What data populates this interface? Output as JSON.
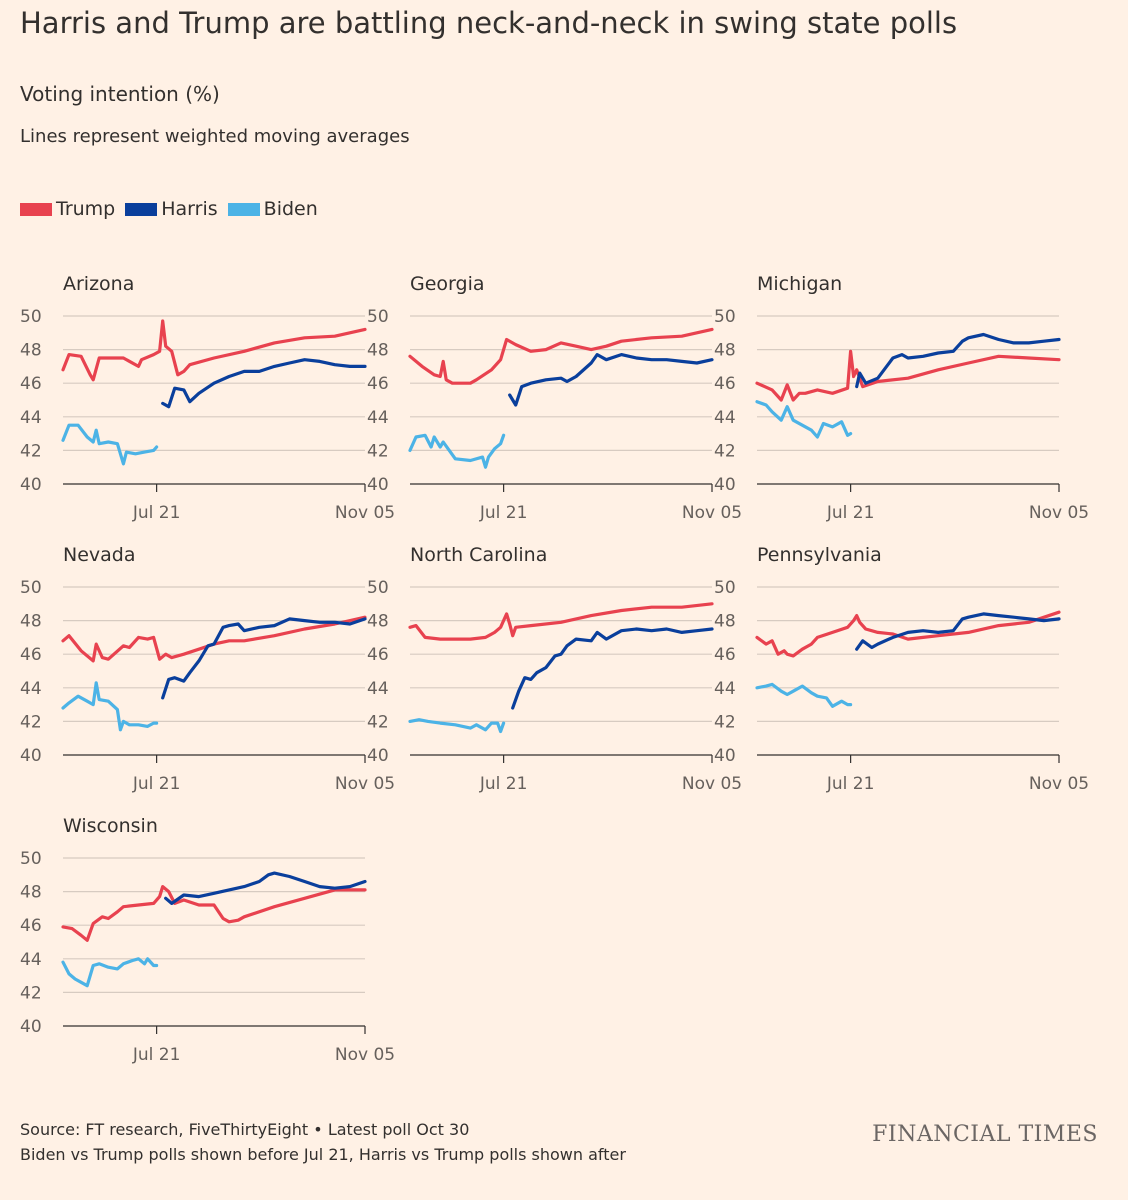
{
  "title": "Harris and Trump are battling neck-and-neck in swing state polls",
  "subtitle": "Voting intention (%)",
  "note": "Lines represent weighted moving averages",
  "legend": [
    {
      "name": "Trump",
      "color": "#e8424f"
    },
    {
      "name": "Harris",
      "color": "#0a3f9c"
    },
    {
      "name": "Biden",
      "color": "#4cb3e6"
    }
  ],
  "footer": {
    "source": "Source: FT research, FiveThirtyEight • Latest poll Oct 30",
    "note": "Biden vs Trump polls shown before Jul 21, Harris vs Trump polls shown after"
  },
  "brand": "FINANCIAL TIMES",
  "chart_data": [
    {
      "type": "line",
      "title": "Arizona",
      "x_ticks": [
        "Jul 21",
        "Nov 05"
      ],
      "ylim": [
        40,
        50
      ],
      "y_ticks": [
        40,
        42,
        44,
        46,
        48,
        50
      ],
      "series": [
        {
          "name": "Trump",
          "color": "#e8424f",
          "x": [
            0,
            0.02,
            0.06,
            0.09,
            0.1,
            0.12,
            0.13,
            0.2,
            0.25,
            0.26,
            0.3,
            0.32,
            0.33,
            0.34,
            0.36,
            0.38,
            0.4,
            0.42,
            0.5,
            0.6,
            0.7,
            0.8,
            0.9,
            1
          ],
          "y": [
            46.8,
            47.7,
            47.6,
            46.5,
            46.2,
            47.5,
            47.5,
            47.5,
            47.0,
            47.4,
            47.7,
            47.9,
            49.7,
            48.2,
            47.9,
            46.5,
            46.7,
            47.1,
            47.5,
            47.9,
            48.4,
            48.7,
            48.8,
            49.2
          ]
        },
        {
          "name": "Harris",
          "color": "#0a3f9c",
          "x": [
            0.33,
            0.35,
            0.37,
            0.4,
            0.42,
            0.45,
            0.5,
            0.55,
            0.6,
            0.65,
            0.7,
            0.75,
            0.8,
            0.85,
            0.9,
            0.95,
            1
          ],
          "y": [
            44.8,
            44.6,
            45.7,
            45.6,
            44.9,
            45.4,
            46.0,
            46.4,
            46.7,
            46.7,
            47.0,
            47.2,
            47.4,
            47.3,
            47.1,
            47.0,
            47.0
          ]
        },
        {
          "name": "Biden",
          "color": "#4cb3e6",
          "x": [
            0,
            0.02,
            0.05,
            0.08,
            0.1,
            0.11,
            0.12,
            0.15,
            0.18,
            0.2,
            0.21,
            0.24,
            0.27,
            0.3,
            0.31
          ],
          "y": [
            42.6,
            43.5,
            43.5,
            42.8,
            42.5,
            43.2,
            42.4,
            42.5,
            42.4,
            41.2,
            41.9,
            41.8,
            41.9,
            42.0,
            42.2
          ]
        }
      ]
    },
    {
      "type": "line",
      "title": "Georgia",
      "x_ticks": [
        "Jul 21",
        "Nov 05"
      ],
      "ylim": [
        40,
        50
      ],
      "y_ticks": [
        40,
        42,
        44,
        46,
        48,
        50
      ],
      "series": [
        {
          "name": "Trump",
          "color": "#e8424f",
          "x": [
            0,
            0.04,
            0.08,
            0.1,
            0.11,
            0.12,
            0.14,
            0.2,
            0.22,
            0.27,
            0.3,
            0.32,
            0.35,
            0.4,
            0.45,
            0.5,
            0.55,
            0.6,
            0.65,
            0.7,
            0.8,
            0.9,
            1
          ],
          "y": [
            47.6,
            47.0,
            46.5,
            46.4,
            47.3,
            46.2,
            46.0,
            46.0,
            46.2,
            46.8,
            47.4,
            48.6,
            48.3,
            47.9,
            48.0,
            48.4,
            48.2,
            48.0,
            48.2,
            48.5,
            48.7,
            48.8,
            49.2
          ]
        },
        {
          "name": "Harris",
          "color": "#0a3f9c",
          "x": [
            0.33,
            0.35,
            0.37,
            0.4,
            0.45,
            0.5,
            0.52,
            0.55,
            0.6,
            0.62,
            0.65,
            0.7,
            0.75,
            0.8,
            0.85,
            0.9,
            0.95,
            1
          ],
          "y": [
            45.3,
            44.7,
            45.8,
            46.0,
            46.2,
            46.3,
            46.1,
            46.4,
            47.2,
            47.7,
            47.4,
            47.7,
            47.5,
            47.4,
            47.4,
            47.3,
            47.2,
            47.4
          ]
        },
        {
          "name": "Biden",
          "color": "#4cb3e6",
          "x": [
            0,
            0.02,
            0.05,
            0.07,
            0.08,
            0.1,
            0.11,
            0.15,
            0.2,
            0.24,
            0.25,
            0.26,
            0.28,
            0.3,
            0.31
          ],
          "y": [
            42.0,
            42.8,
            42.9,
            42.2,
            42.8,
            42.2,
            42.5,
            41.5,
            41.4,
            41.6,
            41.0,
            41.6,
            42.1,
            42.4,
            42.9
          ]
        }
      ]
    },
    {
      "type": "line",
      "title": "Michigan",
      "x_ticks": [
        "Jul 21",
        "Nov 05"
      ],
      "ylim": [
        40,
        50
      ],
      "y_ticks": [
        40,
        42,
        44,
        46,
        48,
        50
      ],
      "series": [
        {
          "name": "Trump",
          "color": "#e8424f",
          "x": [
            0,
            0.05,
            0.08,
            0.1,
            0.12,
            0.14,
            0.16,
            0.2,
            0.25,
            0.3,
            0.31,
            0.32,
            0.33,
            0.35,
            0.4,
            0.5,
            0.6,
            0.7,
            0.8,
            0.9,
            1
          ],
          "y": [
            46.0,
            45.6,
            45.0,
            45.9,
            45.0,
            45.4,
            45.4,
            45.6,
            45.4,
            45.7,
            47.9,
            46.4,
            46.8,
            45.8,
            46.1,
            46.3,
            46.8,
            47.2,
            47.6,
            47.5,
            47.4
          ]
        },
        {
          "name": "Harris",
          "color": "#0a3f9c",
          "x": [
            0.33,
            0.34,
            0.36,
            0.4,
            0.45,
            0.48,
            0.5,
            0.55,
            0.6,
            0.65,
            0.68,
            0.7,
            0.75,
            0.8,
            0.85,
            0.9,
            0.95,
            1
          ],
          "y": [
            45.8,
            46.6,
            46.0,
            46.3,
            47.5,
            47.7,
            47.5,
            47.6,
            47.8,
            47.9,
            48.5,
            48.7,
            48.9,
            48.6,
            48.4,
            48.4,
            48.5,
            48.6
          ]
        },
        {
          "name": "Biden",
          "color": "#4cb3e6",
          "x": [
            0,
            0.03,
            0.05,
            0.08,
            0.1,
            0.12,
            0.15,
            0.18,
            0.2,
            0.22,
            0.25,
            0.28,
            0.3,
            0.31
          ],
          "y": [
            44.9,
            44.7,
            44.3,
            43.8,
            44.6,
            43.8,
            43.5,
            43.2,
            42.8,
            43.6,
            43.4,
            43.7,
            42.9,
            43.0
          ]
        }
      ]
    },
    {
      "type": "line",
      "title": "Nevada",
      "x_ticks": [
        "Jul 21",
        "Nov 05"
      ],
      "ylim": [
        40,
        50
      ],
      "y_ticks": [
        40,
        42,
        44,
        46,
        48,
        50
      ],
      "series": [
        {
          "name": "Trump",
          "color": "#e8424f",
          "x": [
            0,
            0.02,
            0.06,
            0.1,
            0.11,
            0.13,
            0.15,
            0.2,
            0.22,
            0.25,
            0.28,
            0.3,
            0.32,
            0.34,
            0.36,
            0.4,
            0.45,
            0.5,
            0.55,
            0.6,
            0.7,
            0.8,
            0.9,
            1
          ],
          "y": [
            46.8,
            47.1,
            46.2,
            45.6,
            46.6,
            45.8,
            45.7,
            46.5,
            46.4,
            47.0,
            46.9,
            47.0,
            45.7,
            46.0,
            45.8,
            46.0,
            46.3,
            46.6,
            46.8,
            46.8,
            47.1,
            47.5,
            47.8,
            48.2
          ]
        },
        {
          "name": "Harris",
          "color": "#0a3f9c",
          "x": [
            0.33,
            0.35,
            0.37,
            0.4,
            0.42,
            0.45,
            0.48,
            0.5,
            0.53,
            0.55,
            0.58,
            0.6,
            0.65,
            0.7,
            0.75,
            0.8,
            0.85,
            0.9,
            0.95,
            1
          ],
          "y": [
            43.4,
            44.5,
            44.6,
            44.4,
            44.9,
            45.6,
            46.5,
            46.6,
            47.6,
            47.7,
            47.8,
            47.4,
            47.6,
            47.7,
            48.1,
            48.0,
            47.9,
            47.9,
            47.8,
            48.1
          ]
        },
        {
          "name": "Biden",
          "color": "#4cb3e6",
          "x": [
            0,
            0.02,
            0.05,
            0.08,
            0.1,
            0.11,
            0.12,
            0.15,
            0.18,
            0.19,
            0.2,
            0.22,
            0.25,
            0.28,
            0.3,
            0.31
          ],
          "y": [
            42.8,
            43.1,
            43.5,
            43.2,
            43.0,
            44.3,
            43.3,
            43.2,
            42.7,
            41.5,
            42.0,
            41.8,
            41.8,
            41.7,
            41.9,
            41.9
          ]
        }
      ]
    },
    {
      "type": "line",
      "title": "North Carolina",
      "x_ticks": [
        "Jul 21",
        "Nov 05"
      ],
      "ylim": [
        40,
        50
      ],
      "y_ticks": [
        40,
        42,
        44,
        46,
        48,
        50
      ],
      "series": [
        {
          "name": "Trump",
          "color": "#e8424f",
          "x": [
            0,
            0.02,
            0.05,
            0.1,
            0.15,
            0.2,
            0.25,
            0.28,
            0.3,
            0.32,
            0.33,
            0.34,
            0.35,
            0.4,
            0.5,
            0.55,
            0.6,
            0.7,
            0.8,
            0.9,
            1
          ],
          "y": [
            47.6,
            47.7,
            47.0,
            46.9,
            46.9,
            46.9,
            47.0,
            47.3,
            47.6,
            48.4,
            47.8,
            47.1,
            47.6,
            47.7,
            47.9,
            48.1,
            48.3,
            48.6,
            48.8,
            48.8,
            49.0
          ]
        },
        {
          "name": "Harris",
          "color": "#0a3f9c",
          "x": [
            0.34,
            0.36,
            0.38,
            0.4,
            0.42,
            0.45,
            0.48,
            0.5,
            0.52,
            0.55,
            0.6,
            0.62,
            0.65,
            0.7,
            0.75,
            0.8,
            0.85,
            0.9,
            0.95,
            1
          ],
          "y": [
            42.8,
            43.8,
            44.6,
            44.5,
            44.9,
            45.2,
            45.9,
            46.0,
            46.5,
            46.9,
            46.8,
            47.3,
            46.9,
            47.4,
            47.5,
            47.4,
            47.5,
            47.3,
            47.4,
            47.5
          ]
        },
        {
          "name": "Biden",
          "color": "#4cb3e6",
          "x": [
            0,
            0.03,
            0.06,
            0.1,
            0.15,
            0.2,
            0.22,
            0.25,
            0.27,
            0.29,
            0.3,
            0.31
          ],
          "y": [
            42.0,
            42.1,
            42.0,
            41.9,
            41.8,
            41.6,
            41.8,
            41.5,
            41.9,
            41.9,
            41.4,
            41.9
          ]
        }
      ]
    },
    {
      "type": "line",
      "title": "Pennsylvania",
      "x_ticks": [
        "Jul 21",
        "Nov 05"
      ],
      "ylim": [
        40,
        50
      ],
      "y_ticks": [
        40,
        42,
        44,
        46,
        48,
        50
      ],
      "series": [
        {
          "name": "Trump",
          "color": "#e8424f",
          "x": [
            0,
            0.03,
            0.05,
            0.07,
            0.09,
            0.1,
            0.12,
            0.15,
            0.18,
            0.2,
            0.25,
            0.3,
            0.32,
            0.33,
            0.34,
            0.36,
            0.4,
            0.45,
            0.5,
            0.55,
            0.6,
            0.7,
            0.8,
            0.9,
            1
          ],
          "y": [
            47.0,
            46.6,
            46.8,
            46.0,
            46.2,
            46.0,
            45.9,
            46.3,
            46.6,
            47.0,
            47.3,
            47.6,
            48.0,
            48.3,
            47.9,
            47.5,
            47.3,
            47.2,
            46.9,
            47.0,
            47.1,
            47.3,
            47.7,
            47.9,
            48.5
          ]
        },
        {
          "name": "Harris",
          "color": "#0a3f9c",
          "x": [
            0.33,
            0.35,
            0.38,
            0.4,
            0.45,
            0.5,
            0.55,
            0.6,
            0.65,
            0.68,
            0.7,
            0.75,
            0.8,
            0.85,
            0.9,
            0.95,
            1
          ],
          "y": [
            46.3,
            46.8,
            46.4,
            46.6,
            47.0,
            47.3,
            47.4,
            47.3,
            47.4,
            48.1,
            48.2,
            48.4,
            48.3,
            48.2,
            48.1,
            48.0,
            48.1
          ]
        },
        {
          "name": "Biden",
          "color": "#4cb3e6",
          "x": [
            0,
            0.03,
            0.05,
            0.08,
            0.1,
            0.12,
            0.15,
            0.18,
            0.2,
            0.23,
            0.25,
            0.28,
            0.3,
            0.31
          ],
          "y": [
            44.0,
            44.1,
            44.2,
            43.8,
            43.6,
            43.8,
            44.1,
            43.7,
            43.5,
            43.4,
            42.9,
            43.2,
            43.0,
            43.0
          ]
        }
      ]
    },
    {
      "type": "line",
      "title": "Wisconsin",
      "x_ticks": [
        "Jul 21",
        "Nov 05"
      ],
      "ylim": [
        40,
        50
      ],
      "y_ticks": [
        40,
        42,
        44,
        46,
        48,
        50
      ],
      "series": [
        {
          "name": "Trump",
          "color": "#e8424f",
          "x": [
            0,
            0.03,
            0.06,
            0.08,
            0.1,
            0.13,
            0.15,
            0.18,
            0.2,
            0.25,
            0.3,
            0.32,
            0.33,
            0.35,
            0.37,
            0.4,
            0.45,
            0.5,
            0.53,
            0.55,
            0.58,
            0.6,
            0.7,
            0.8,
            0.9,
            1
          ],
          "y": [
            45.9,
            45.8,
            45.4,
            45.1,
            46.1,
            46.5,
            46.4,
            46.8,
            47.1,
            47.2,
            47.3,
            47.7,
            48.3,
            48.0,
            47.3,
            47.5,
            47.2,
            47.2,
            46.4,
            46.2,
            46.3,
            46.5,
            47.1,
            47.6,
            48.1,
            48.1
          ]
        },
        {
          "name": "Harris",
          "color": "#0a3f9c",
          "x": [
            0.34,
            0.36,
            0.4,
            0.45,
            0.5,
            0.55,
            0.6,
            0.65,
            0.68,
            0.7,
            0.75,
            0.8,
            0.85,
            0.9,
            0.95,
            1
          ],
          "y": [
            47.6,
            47.3,
            47.8,
            47.7,
            47.9,
            48.1,
            48.3,
            48.6,
            49.0,
            49.1,
            48.9,
            48.6,
            48.3,
            48.2,
            48.3,
            48.6
          ]
        },
        {
          "name": "Biden",
          "color": "#4cb3e6",
          "x": [
            0,
            0.02,
            0.04,
            0.06,
            0.08,
            0.1,
            0.12,
            0.15,
            0.18,
            0.2,
            0.23,
            0.25,
            0.27,
            0.28,
            0.3,
            0.31
          ],
          "y": [
            43.8,
            43.1,
            42.8,
            42.6,
            42.4,
            43.6,
            43.7,
            43.5,
            43.4,
            43.7,
            43.9,
            44.0,
            43.7,
            44.0,
            43.6,
            43.6
          ]
        }
      ]
    }
  ]
}
